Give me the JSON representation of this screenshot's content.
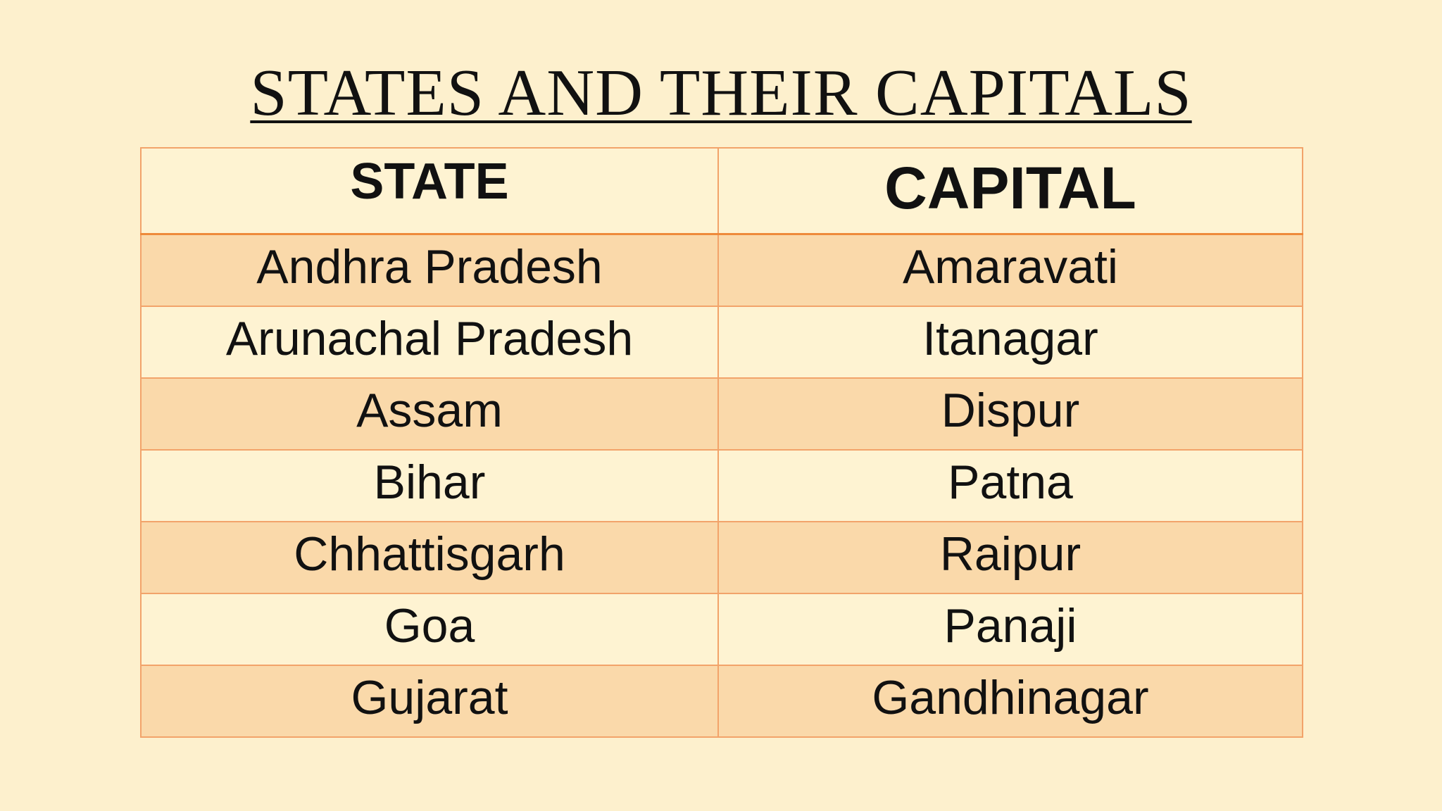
{
  "title": "STATES AND THEIR CAPITALS",
  "table": {
    "headers": [
      "STATE",
      "CAPITAL"
    ],
    "rows": [
      [
        "Andhra Pradesh",
        "Amaravati"
      ],
      [
        "Arunachal Pradesh",
        "Itanagar"
      ],
      [
        "Assam",
        "Dispur"
      ],
      [
        "Bihar",
        "Patna"
      ],
      [
        "Chhattisgarh",
        "Raipur"
      ],
      [
        "Goa",
        "Panaji"
      ],
      [
        "Gujarat",
        "Gandhinagar"
      ]
    ]
  }
}
